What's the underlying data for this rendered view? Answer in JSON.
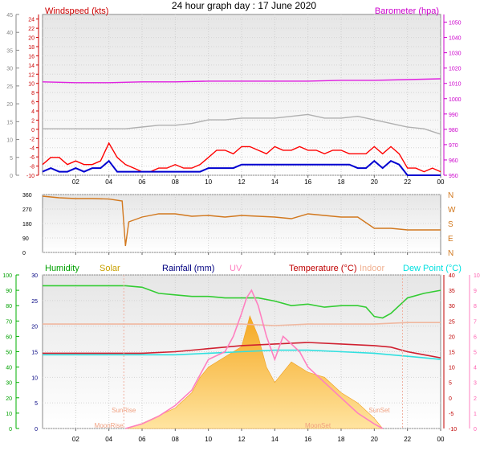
{
  "header": {
    "title": "24 hour graph day : 17 June 2020"
  },
  "chart_data": [
    {
      "type": "line",
      "title": "24 hour graph day : 17 June 2020",
      "ylabel": "Windspeed (kts)",
      "y2label": "Barometer (hpa)",
      "x_ticks": [
        "02",
        "04",
        "06",
        "08",
        "10",
        "12",
        "14",
        "16",
        "18",
        "20",
        "22",
        "00"
      ],
      "y_left_outer_ticks": [
        "0",
        "5",
        "10",
        "15",
        "20",
        "25",
        "30",
        "35",
        "40",
        "45"
      ],
      "y_left_inner_ticks": [
        "-10",
        "-8",
        "-6",
        "-4",
        "-2",
        "0",
        "2",
        "4",
        "6",
        "8",
        "10",
        "12",
        "14",
        "16",
        "18",
        "20",
        "22",
        "24"
      ],
      "y_right_ticks": [
        "950",
        "960",
        "970",
        "980",
        "990",
        "1000",
        "1010",
        "1020",
        "1030",
        "1040",
        "1050"
      ],
      "ylim_outer": [
        0,
        45
      ],
      "ylim_inner": [
        -10,
        25
      ],
      "ylim_right": [
        950,
        1055
      ],
      "grid": true,
      "series": [
        {
          "name": "Barometer (hpa)",
          "color": "#e020e0",
          "axis": "right",
          "x": [
            0,
            2,
            4,
            6,
            8,
            10,
            12,
            14,
            16,
            18,
            20,
            22,
            24
          ],
          "values": [
            1011,
            1010.5,
            1010.5,
            1011,
            1011,
            1011.5,
            1011.5,
            1011.5,
            1011.5,
            1012,
            1012,
            1012.5,
            1013
          ]
        },
        {
          "color": "#b0b0b0",
          "axis": "left_outer",
          "x": [
            0,
            1,
            2,
            3,
            4,
            5,
            6,
            7,
            8,
            9,
            10,
            11,
            12,
            13,
            14,
            15,
            16,
            17,
            18,
            19,
            20,
            21,
            22,
            23,
            24
          ],
          "values": [
            13,
            13,
            13,
            13,
            13,
            13,
            13.5,
            14,
            14,
            14.5,
            15.5,
            15.5,
            16,
            16,
            16,
            16.5,
            17,
            16,
            16,
            16.5,
            15.5,
            14.5,
            13.5,
            13,
            11.5
          ]
        },
        {
          "color": "#ff0000",
          "axis": "left_outer",
          "x": [
            0,
            0.5,
            1,
            1.5,
            2,
            2.5,
            3,
            3.5,
            4,
            4.5,
            5,
            5.5,
            6,
            6.5,
            7,
            7.5,
            8,
            8.5,
            9,
            9.5,
            10,
            10.5,
            11,
            11.5,
            12,
            12.5,
            13,
            13.5,
            14,
            14.5,
            15,
            15.5,
            16,
            16.5,
            17,
            17.5,
            18,
            18.5,
            19,
            19.5,
            20,
            20.5,
            21,
            21.5,
            22,
            22.5,
            23,
            23.5,
            24
          ],
          "values": [
            3,
            5,
            5,
            3,
            4,
            3,
            3,
            4,
            9,
            5,
            3,
            2,
            1,
            1,
            2,
            2,
            3,
            2,
            2,
            3,
            5,
            7,
            7,
            6,
            8,
            8,
            7,
            6,
            8,
            7,
            7,
            8,
            7,
            7,
            6,
            7,
            7,
            6,
            6,
            6,
            8,
            6,
            8,
            6,
            2,
            2,
            1,
            2,
            1
          ]
        },
        {
          "color": "#0000d0",
          "axis": "left_outer",
          "x": [
            0,
            0.5,
            1,
            1.5,
            2,
            2.5,
            3,
            3.5,
            4,
            4.5,
            5,
            5.5,
            6,
            6.5,
            7,
            7.5,
            8,
            8.5,
            9,
            9.5,
            10,
            10.5,
            11,
            11.5,
            12,
            12.5,
            13,
            13.5,
            14,
            14.5,
            15,
            15.5,
            16,
            16.5,
            17,
            17.5,
            18,
            18.5,
            19,
            19.5,
            20,
            20.5,
            21,
            21.5,
            22,
            22.5,
            23,
            23.5,
            24
          ],
          "values": [
            1,
            2,
            1,
            1,
            2,
            1,
            2,
            2,
            4,
            1,
            1,
            1,
            1,
            1,
            1,
            1,
            1,
            1,
            1,
            1,
            2,
            2,
            2,
            2,
            3,
            3,
            3,
            3,
            3,
            3,
            3,
            3,
            3,
            3,
            3,
            3,
            3,
            3,
            2,
            2,
            4,
            2,
            4,
            3,
            0,
            0,
            0,
            0,
            0
          ]
        }
      ]
    },
    {
      "type": "line",
      "ytick_labels": [
        "360",
        "270",
        "180",
        "90",
        "0"
      ],
      "y2tick_labels": [
        "N",
        "W",
        "S",
        "E",
        "N"
      ],
      "x_ticks": [
        "02",
        "04",
        "06",
        "08",
        "10",
        "12",
        "14",
        "16",
        "18",
        "20",
        "22",
        "00"
      ],
      "ylim": [
        0,
        360
      ],
      "series": [
        {
          "color": "#d2781e",
          "x": [
            0,
            1,
            2,
            3,
            4,
            4.8,
            5,
            5.2,
            6,
            7,
            8,
            9,
            10,
            11,
            12,
            13,
            14,
            15,
            16,
            17,
            18,
            19,
            20,
            21,
            22,
            23,
            24
          ],
          "values": [
            350,
            340,
            335,
            335,
            332,
            320,
            40,
            190,
            220,
            240,
            240,
            225,
            230,
            220,
            230,
            225,
            220,
            210,
            240,
            230,
            220,
            220,
            150,
            150,
            140,
            140,
            140
          ]
        }
      ]
    },
    {
      "type": "line",
      "legend": [
        "Humidity",
        "Solar",
        "Rainfall (mm)",
        "UV",
        "Temperature (°C)",
        "Indoor",
        "Dew Point (°C)"
      ],
      "legend_colors": [
        "#00a000",
        "#c8a000",
        "#000080",
        "#ff80c0",
        "#c00000",
        "#f0b090",
        "#00e0e0"
      ],
      "x_ticks": [
        "02",
        "04",
        "06",
        "08",
        "10",
        "12",
        "14",
        "16",
        "18",
        "20",
        "22",
        "00"
      ],
      "y_humidity_ticks": [
        "0",
        "10",
        "20",
        "30",
        "40",
        "50",
        "60",
        "70",
        "80",
        "90",
        "100"
      ],
      "y_rain_ticks": [
        "0",
        "5",
        "10",
        "15",
        "20",
        "25",
        "30"
      ],
      "y_temp_ticks": [
        "-10",
        "-5",
        "0",
        "5",
        "10",
        "15",
        "20",
        "25",
        "30",
        "35",
        "40"
      ],
      "y_uv_ticks": [
        "0",
        "1",
        "2",
        "3",
        "4",
        "5",
        "6",
        "7",
        "8",
        "9",
        "10"
      ],
      "annotations": [
        "SunRise",
        "SunSet",
        "MoonRise",
        "MoonSet"
      ],
      "series": [
        {
          "name": "Humidity",
          "color": "#33cc33",
          "axis": "humidity",
          "x": [
            0,
            2,
            4,
            5,
            6,
            7,
            8,
            9,
            10,
            11,
            12,
            13,
            14,
            15,
            16,
            17,
            18,
            19,
            19.5,
            20,
            20.5,
            21,
            22,
            23,
            24
          ],
          "values": [
            93,
            93,
            93,
            93,
            92,
            88,
            87,
            86,
            86,
            85,
            85,
            85,
            83,
            80,
            81,
            79,
            80,
            80,
            79,
            73,
            72,
            75,
            85,
            88,
            90
          ]
        },
        {
          "name": "Indoor",
          "color": "#f0b8a0",
          "axis": "temp",
          "x": [
            0,
            2,
            4,
            6,
            8,
            10,
            12,
            14,
            16,
            18,
            20,
            22,
            24
          ],
          "values": [
            24,
            24,
            24,
            24,
            24,
            24,
            24,
            23.5,
            24,
            24,
            24,
            24.5,
            24.5
          ]
        },
        {
          "name": "Temperature (°C)",
          "color": "#d02030",
          "axis": "temp",
          "x": [
            0,
            2,
            4,
            6,
            8,
            10,
            12,
            14,
            16,
            18,
            20,
            21,
            22,
            23,
            24
          ],
          "values": [
            14.5,
            14.5,
            14.5,
            14.5,
            15,
            16,
            17,
            17.5,
            18,
            17.5,
            17,
            16.5,
            15,
            14,
            13
          ]
        },
        {
          "name": "Dew Point (°C)",
          "color": "#30e0e0",
          "axis": "temp",
          "x": [
            0,
            2,
            4,
            6,
            8,
            10,
            12,
            14,
            16,
            18,
            20,
            21,
            22,
            23,
            24
          ],
          "values": [
            14,
            14,
            14,
            14,
            14,
            14.5,
            15,
            15.5,
            15.5,
            15,
            14.5,
            14,
            13.5,
            13,
            12.5
          ]
        },
        {
          "name": "UV",
          "color": "#ff80c0",
          "axis": "uv",
          "x": [
            5,
            6,
            7,
            8,
            9,
            9.5,
            10,
            11,
            11.5,
            12,
            12.3,
            12.6,
            13,
            13.5,
            14,
            14.5,
            15,
            15.5,
            16,
            17,
            18,
            19,
            20,
            20.5
          ],
          "values": [
            0,
            0.3,
            0.8,
            1.5,
            2.5,
            3.5,
            4.5,
            5,
            6,
            7.5,
            8.5,
            9,
            8,
            6,
            4.5,
            6,
            5.5,
            5,
            4,
            3,
            2,
            1,
            0.3,
            0
          ]
        },
        {
          "name": "Solar",
          "color": "#f5b830",
          "axis": "rain",
          "x": [
            5,
            6,
            7,
            8,
            9,
            9.5,
            10,
            11,
            12,
            12.5,
            13,
            13.5,
            14,
            15,
            16,
            17,
            18,
            19,
            20,
            20.5
          ],
          "values": [
            0,
            1,
            2.5,
            4,
            7,
            10,
            12,
            14,
            16,
            22,
            18,
            12,
            9,
            13,
            11,
            10,
            7,
            5,
            2,
            0
          ]
        }
      ]
    }
  ]
}
